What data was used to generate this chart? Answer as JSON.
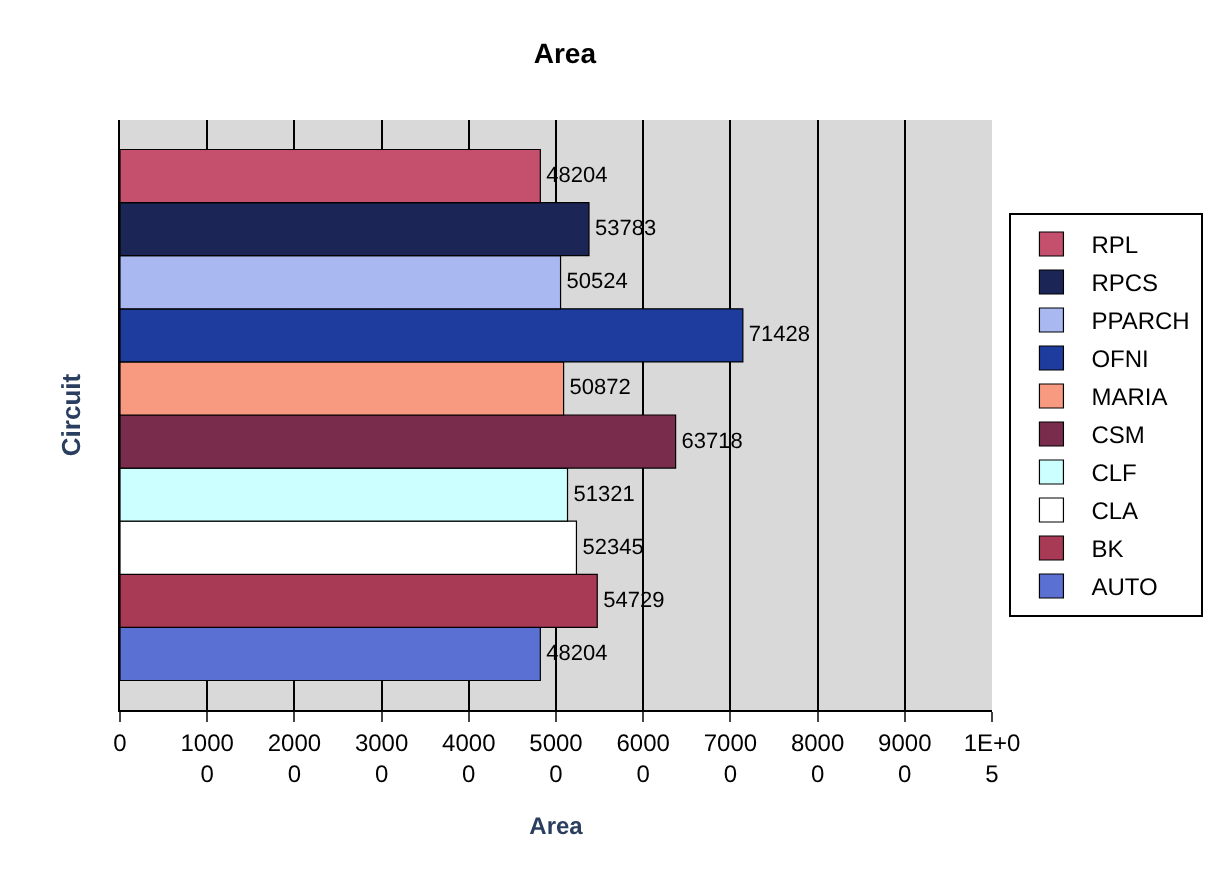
{
  "chart_data": {
    "type": "bar",
    "orientation": "horizontal",
    "title": "Area",
    "xlabel": "Area",
    "ylabel": "Circuit",
    "categories": [
      null
    ],
    "series": [
      {
        "name": "RPL",
        "color": "#c4506e",
        "values": [
          48204
        ]
      },
      {
        "name": "RPCS",
        "color": "#1c2656",
        "values": [
          53783
        ]
      },
      {
        "name": "PPARCH",
        "color": "#aab8f2",
        "values": [
          50524
        ]
      },
      {
        "name": "OFNI",
        "color": "#1e3c9e",
        "values": [
          71428
        ]
      },
      {
        "name": "MARIA",
        "color": "#f89a80",
        "values": [
          50872
        ]
      },
      {
        "name": "CSM",
        "color": "#7a2c4c",
        "values": [
          63718
        ]
      },
      {
        "name": "CLF",
        "color": "#ccffff",
        "values": [
          51321
        ]
      },
      {
        "name": "CLA",
        "color": "#ffffff",
        "values": [
          52345
        ]
      },
      {
        "name": "BK",
        "color": "#a83a56",
        "values": [
          54729
        ]
      },
      {
        "name": "AUTO",
        "color": "#5a70d2",
        "values": [
          48204
        ]
      }
    ],
    "xlim": [
      0,
      100000
    ],
    "xticks": [
      0,
      10000,
      20000,
      30000,
      40000,
      50000,
      60000,
      70000,
      80000,
      90000,
      {
        "value": 100000,
        "label": "1E+05"
      }
    ],
    "grid": "x",
    "legend": "right",
    "data_labels": true,
    "tick_labels": "x"
  }
}
